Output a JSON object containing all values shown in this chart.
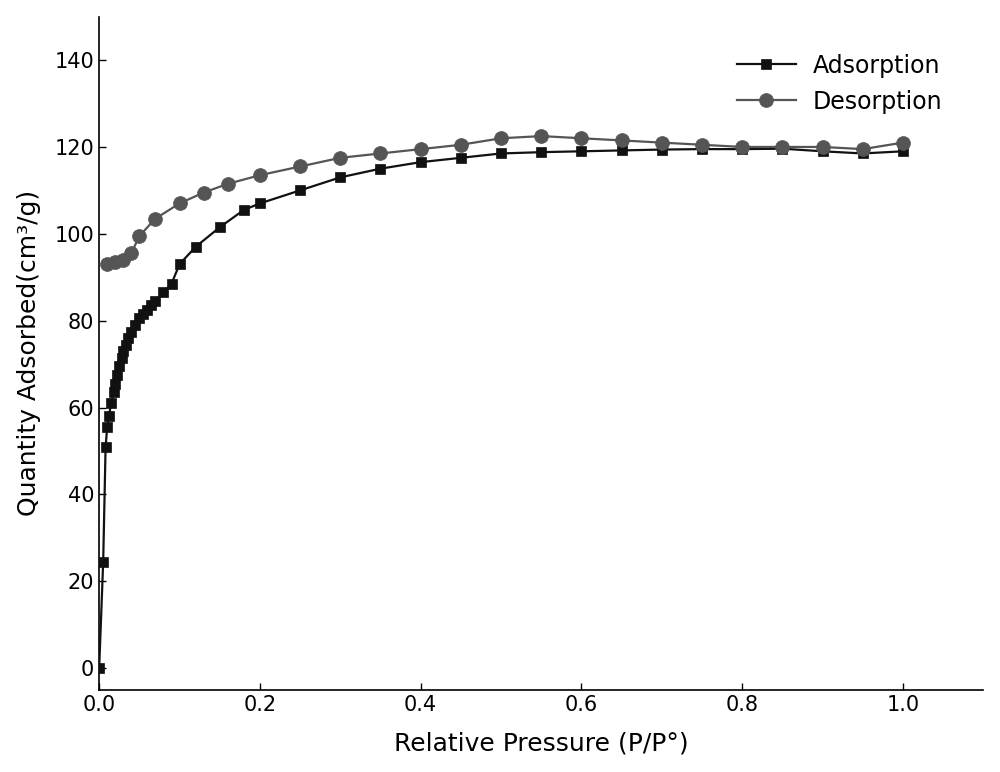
{
  "adsorption_x": [
    0.0,
    0.005,
    0.008,
    0.01,
    0.012,
    0.015,
    0.018,
    0.02,
    0.022,
    0.025,
    0.028,
    0.03,
    0.033,
    0.036,
    0.04,
    0.045,
    0.05,
    0.055,
    0.06,
    0.065,
    0.07,
    0.08,
    0.09,
    0.1,
    0.12,
    0.15,
    0.18,
    0.2,
    0.25,
    0.3,
    0.35,
    0.4,
    0.45,
    0.5,
    0.55,
    0.6,
    0.65,
    0.7,
    0.75,
    0.8,
    0.85,
    0.9,
    0.95,
    1.0
  ],
  "adsorption_y": [
    0.0,
    24.5,
    51.0,
    55.5,
    58.0,
    61.0,
    63.5,
    65.5,
    67.5,
    69.5,
    71.5,
    73.0,
    74.5,
    76.0,
    77.5,
    79.0,
    80.5,
    81.5,
    82.5,
    83.5,
    84.5,
    86.5,
    88.5,
    93.0,
    97.0,
    101.5,
    105.5,
    107.0,
    110.0,
    113.0,
    115.0,
    116.5,
    117.5,
    118.5,
    118.8,
    119.0,
    119.2,
    119.4,
    119.5,
    119.5,
    119.6,
    119.0,
    118.5,
    119.0
  ],
  "desorption_x": [
    0.01,
    0.02,
    0.03,
    0.04,
    0.05,
    0.07,
    0.1,
    0.13,
    0.16,
    0.2,
    0.25,
    0.3,
    0.35,
    0.4,
    0.45,
    0.5,
    0.55,
    0.6,
    0.65,
    0.7,
    0.75,
    0.8,
    0.85,
    0.9,
    0.95,
    1.0
  ],
  "desorption_y": [
    93.0,
    93.5,
    94.0,
    95.5,
    99.5,
    103.5,
    107.0,
    109.5,
    111.5,
    113.5,
    115.5,
    117.5,
    118.5,
    119.5,
    120.5,
    122.0,
    122.5,
    122.0,
    121.5,
    121.0,
    120.5,
    120.0,
    120.0,
    120.0,
    119.5,
    121.0
  ],
  "xlabel": "Relative Pressure (P/P°)",
  "ylabel": "Quantity Adsorbed(cm³/g)",
  "xlim": [
    0.0,
    1.1
  ],
  "ylim": [
    -5,
    150
  ],
  "xticks": [
    0.0,
    0.2,
    0.4,
    0.6,
    0.8,
    1.0
  ],
  "yticks": [
    0,
    20,
    40,
    60,
    80,
    100,
    120,
    140
  ],
  "adsorption_color": "#111111",
  "desorption_color": "#555555",
  "background_color": "#ffffff",
  "legend_adsorption": "Adsorption",
  "legend_desorption": "Desorption",
  "line_width": 1.6,
  "marker_size_ads": 7,
  "marker_size_des": 10,
  "font_size_label": 18,
  "font_size_tick": 15,
  "font_size_legend": 17
}
